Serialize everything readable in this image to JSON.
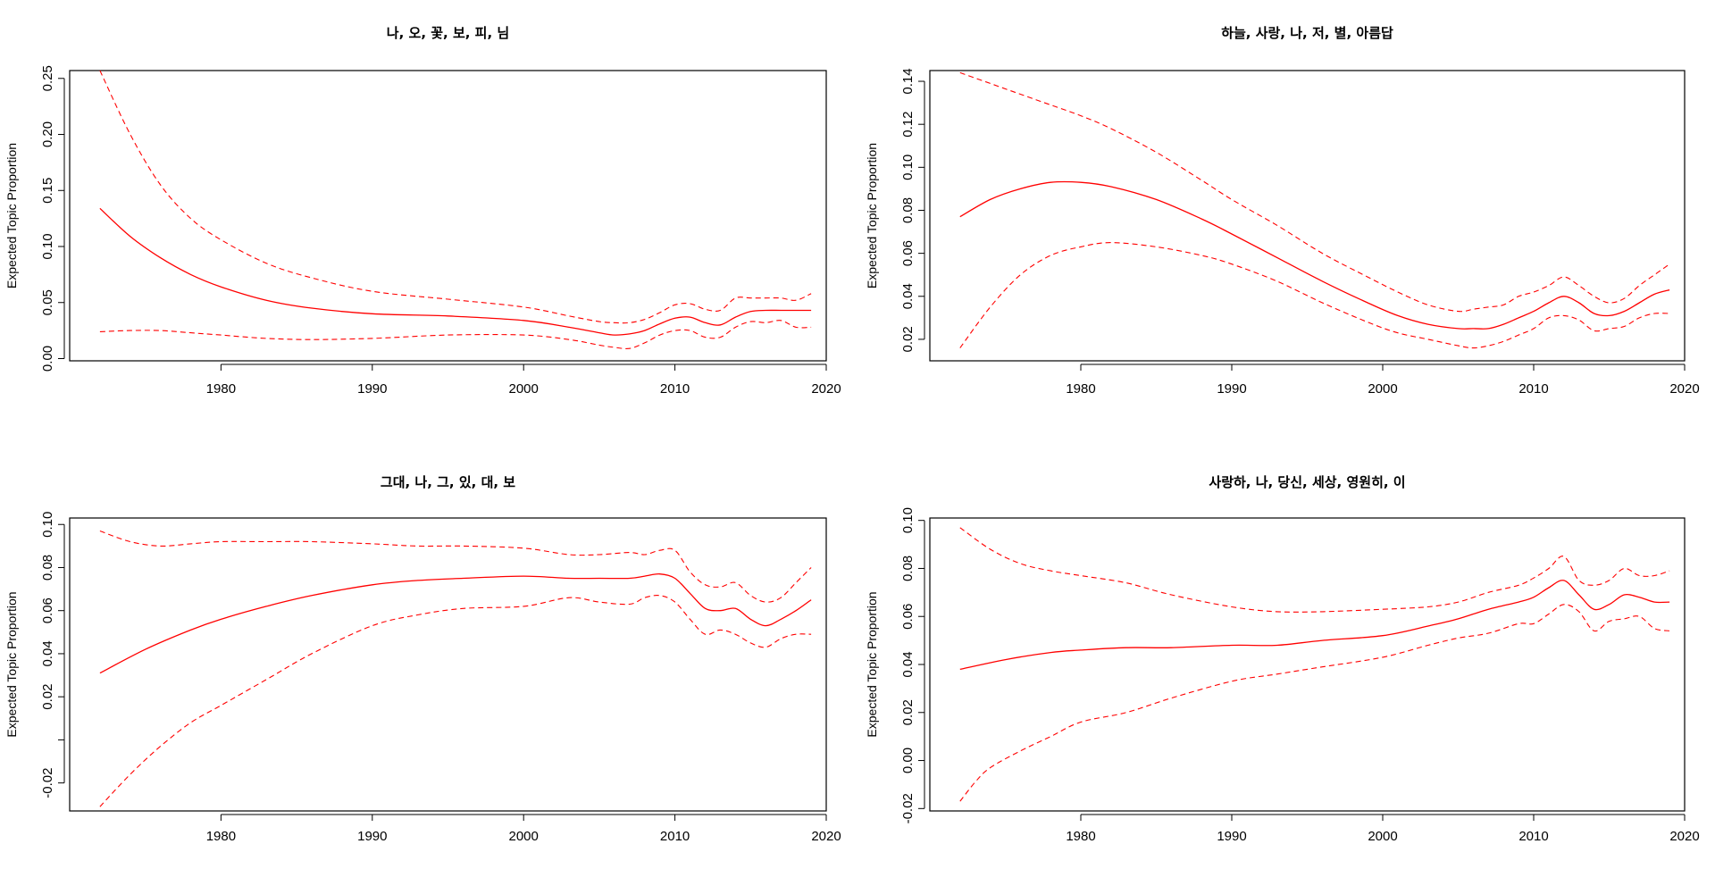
{
  "colors": {
    "series": "#ff0000",
    "axis": "#000000",
    "background": "#ffffff"
  },
  "chart_data": [
    {
      "type": "line",
      "title": "나, 오, 꽃, 보, 피, 님",
      "xlabel": "",
      "ylabel": "Expected Topic Proportion",
      "xlim": [
        1970,
        2020
      ],
      "ylim": [
        -0.002,
        0.257
      ],
      "xticks": [
        1980,
        1990,
        2000,
        2010,
        2020
      ],
      "yticks": [
        0.0,
        0.05,
        0.1,
        0.15,
        0.2,
        0.25
      ],
      "ytick_labels": [
        "0.00",
        "0.05",
        "0.10",
        "0.15",
        "0.20",
        "0.25"
      ],
      "series": [
        {
          "name": "mean",
          "style": "solid",
          "x": [
            1972,
            1974,
            1976,
            1978,
            1980,
            1983,
            1986,
            1990,
            1995,
            2000,
            2003,
            2005,
            2006,
            2007,
            2008,
            2009,
            2010,
            2011,
            2012,
            2013,
            2014,
            2015,
            2016,
            2017,
            2018,
            2019
          ],
          "y": [
            0.134,
            0.109,
            0.09,
            0.075,
            0.064,
            0.052,
            0.045,
            0.04,
            0.038,
            0.034,
            0.028,
            0.023,
            0.021,
            0.022,
            0.025,
            0.031,
            0.036,
            0.037,
            0.032,
            0.03,
            0.037,
            0.042,
            0.043,
            0.043,
            0.043,
            0.043
          ]
        },
        {
          "name": "upper 95% CI",
          "style": "dashed",
          "x": [
            1972,
            1974,
            1976,
            1978,
            1980,
            1983,
            1986,
            1990,
            1995,
            2000,
            2003,
            2005,
            2006,
            2007,
            2008,
            2009,
            2010,
            2011,
            2012,
            2013,
            2014,
            2015,
            2016,
            2017,
            2018,
            2019
          ],
          "y": [
            0.257,
            0.2,
            0.155,
            0.125,
            0.106,
            0.085,
            0.072,
            0.06,
            0.053,
            0.046,
            0.038,
            0.033,
            0.032,
            0.032,
            0.035,
            0.041,
            0.048,
            0.049,
            0.044,
            0.043,
            0.054,
            0.054,
            0.054,
            0.054,
            0.052,
            0.058
          ]
        },
        {
          "name": "lower 95% CI",
          "style": "dashed",
          "x": [
            1972,
            1974,
            1976,
            1978,
            1980,
            1983,
            1986,
            1990,
            1995,
            2000,
            2003,
            2005,
            2006,
            2007,
            2008,
            2009,
            2010,
            2011,
            2012,
            2013,
            2014,
            2015,
            2016,
            2017,
            2018,
            2019
          ],
          "y": [
            0.024,
            0.025,
            0.025,
            0.023,
            0.021,
            0.018,
            0.017,
            0.018,
            0.021,
            0.021,
            0.017,
            0.012,
            0.01,
            0.009,
            0.014,
            0.021,
            0.025,
            0.025,
            0.019,
            0.019,
            0.028,
            0.033,
            0.032,
            0.034,
            0.028,
            0.028
          ]
        }
      ]
    },
    {
      "type": "line",
      "title": "하늘, 사랑, 나, 저, 별, 아름답",
      "xlabel": "",
      "ylabel": "Expected Topic Proportion",
      "xlim": [
        1970,
        2020
      ],
      "ylim": [
        0.01,
        0.145
      ],
      "xticks": [
        1980,
        1990,
        2000,
        2010,
        2020
      ],
      "yticks": [
        0.02,
        0.04,
        0.06,
        0.08,
        0.1,
        0.12,
        0.14
      ],
      "ytick_labels": [
        "0.02",
        "0.04",
        "0.06",
        "0.08",
        "0.10",
        "0.12",
        "0.14"
      ],
      "series": [
        {
          "name": "mean",
          "style": "solid",
          "x": [
            1972,
            1974,
            1976,
            1978,
            1980,
            1982,
            1985,
            1988,
            1990,
            1993,
            1996,
            1999,
            2001,
            2003,
            2005,
            2006,
            2007,
            2008,
            2009,
            2010,
            2011,
            2012,
            2013,
            2014,
            2015,
            2016,
            2017,
            2018,
            2019
          ],
          "y": [
            0.077,
            0.085,
            0.09,
            0.093,
            0.093,
            0.091,
            0.085,
            0.076,
            0.069,
            0.058,
            0.047,
            0.037,
            0.031,
            0.027,
            0.025,
            0.025,
            0.025,
            0.027,
            0.03,
            0.033,
            0.037,
            0.04,
            0.037,
            0.032,
            0.031,
            0.033,
            0.037,
            0.041,
            0.043
          ]
        },
        {
          "name": "upper 95% CI",
          "style": "dashed",
          "x": [
            1972,
            1974,
            1976,
            1978,
            1980,
            1982,
            1985,
            1988,
            1990,
            1993,
            1996,
            1999,
            2001,
            2003,
            2005,
            2006,
            2007,
            2008,
            2009,
            2010,
            2011,
            2012,
            2013,
            2014,
            2015,
            2016,
            2017,
            2018,
            2019
          ],
          "y": [
            0.144,
            0.139,
            0.134,
            0.129,
            0.124,
            0.118,
            0.107,
            0.094,
            0.085,
            0.073,
            0.06,
            0.049,
            0.042,
            0.036,
            0.033,
            0.034,
            0.035,
            0.036,
            0.04,
            0.042,
            0.045,
            0.049,
            0.045,
            0.04,
            0.037,
            0.039,
            0.045,
            0.05,
            0.055
          ]
        },
        {
          "name": "lower 95% CI",
          "style": "dashed",
          "x": [
            1972,
            1974,
            1976,
            1978,
            1980,
            1982,
            1985,
            1988,
            1990,
            1993,
            1996,
            1999,
            2001,
            2003,
            2005,
            2006,
            2007,
            2008,
            2009,
            2010,
            2011,
            2012,
            2013,
            2014,
            2015,
            2016,
            2017,
            2018,
            2019
          ],
          "y": [
            0.016,
            0.035,
            0.05,
            0.059,
            0.063,
            0.065,
            0.063,
            0.059,
            0.055,
            0.047,
            0.037,
            0.028,
            0.023,
            0.02,
            0.017,
            0.016,
            0.017,
            0.019,
            0.022,
            0.025,
            0.03,
            0.031,
            0.029,
            0.024,
            0.025,
            0.026,
            0.03,
            0.032,
            0.032
          ]
        }
      ]
    },
    {
      "type": "line",
      "title": "그대, 나, 그, 있, 대, 보",
      "xlabel": "",
      "ylabel": "Expected Topic Proportion",
      "xlim": [
        1970,
        2020
      ],
      "ylim": [
        -0.033,
        0.103
      ],
      "xticks": [
        1980,
        1990,
        2000,
        2010,
        2020
      ],
      "yticks": [
        -0.02,
        0.0,
        0.02,
        0.04,
        0.06,
        0.08,
        0.1
      ],
      "ytick_labels": [
        "-0.02",
        "",
        "0.02",
        "0.04",
        "0.06",
        "0.08",
        "0.10"
      ],
      "series": [
        {
          "name": "mean",
          "style": "solid",
          "x": [
            1972,
            1975,
            1978,
            1980,
            1983,
            1986,
            1990,
            1993,
            1996,
            2000,
            2003,
            2005,
            2007,
            2008,
            2009,
            2010,
            2011,
            2012,
            2013,
            2014,
            2015,
            2016,
            2017,
            2018,
            2019
          ],
          "y": [
            0.031,
            0.042,
            0.051,
            0.056,
            0.062,
            0.067,
            0.072,
            0.074,
            0.075,
            0.076,
            0.075,
            0.075,
            0.075,
            0.076,
            0.077,
            0.075,
            0.068,
            0.061,
            0.06,
            0.061,
            0.056,
            0.053,
            0.056,
            0.06,
            0.065
          ]
        },
        {
          "name": "upper 95% CI",
          "style": "dashed",
          "x": [
            1972,
            1974,
            1976,
            1978,
            1980,
            1983,
            1986,
            1990,
            1993,
            1996,
            2000,
            2003,
            2005,
            2007,
            2008,
            2009,
            2010,
            2011,
            2012,
            2013,
            2014,
            2015,
            2016,
            2017,
            2018,
            2019
          ],
          "y": [
            0.097,
            0.092,
            0.09,
            0.091,
            0.092,
            0.092,
            0.092,
            0.091,
            0.09,
            0.09,
            0.089,
            0.086,
            0.086,
            0.087,
            0.086,
            0.088,
            0.088,
            0.078,
            0.072,
            0.071,
            0.073,
            0.067,
            0.064,
            0.066,
            0.073,
            0.08
          ]
        },
        {
          "name": "lower 95% CI",
          "style": "dashed",
          "x": [
            1972,
            1974,
            1976,
            1978,
            1980,
            1983,
            1986,
            1990,
            1993,
            1996,
            2000,
            2003,
            2005,
            2007,
            2008,
            2009,
            2010,
            2011,
            2012,
            2013,
            2014,
            2015,
            2016,
            2017,
            2018,
            2019
          ],
          "y": [
            -0.031,
            -0.016,
            -0.003,
            0.008,
            0.016,
            0.028,
            0.04,
            0.053,
            0.058,
            0.061,
            0.062,
            0.066,
            0.064,
            0.063,
            0.066,
            0.067,
            0.064,
            0.056,
            0.049,
            0.051,
            0.049,
            0.045,
            0.043,
            0.047,
            0.049,
            0.049
          ]
        }
      ]
    },
    {
      "type": "line",
      "title": "사랑하, 나, 당신, 세상, 영원히, 이",
      "xlabel": "",
      "ylabel": "Expected Topic Proportion",
      "xlim": [
        1970,
        2020
      ],
      "ylim": [
        -0.021,
        0.101
      ],
      "xticks": [
        1980,
        1990,
        2000,
        2010,
        2020
      ],
      "yticks": [
        -0.02,
        0.0,
        0.02,
        0.04,
        0.06,
        0.08,
        0.1
      ],
      "ytick_labels": [
        "-0.02",
        "0.00",
        "0.02",
        "0.04",
        "0.06",
        "0.08",
        "0.10"
      ],
      "series": [
        {
          "name": "mean",
          "style": "solid",
          "x": [
            1972,
            1975,
            1978,
            1980,
            1983,
            1986,
            1990,
            1993,
            1996,
            2000,
            2003,
            2005,
            2007,
            2009,
            2010,
            2011,
            2012,
            2013,
            2014,
            2015,
            2016,
            2017,
            2018,
            2019
          ],
          "y": [
            0.038,
            0.042,
            0.045,
            0.046,
            0.047,
            0.047,
            0.048,
            0.048,
            0.05,
            0.052,
            0.056,
            0.059,
            0.063,
            0.066,
            0.068,
            0.072,
            0.075,
            0.069,
            0.063,
            0.065,
            0.069,
            0.068,
            0.066,
            0.066
          ]
        },
        {
          "name": "upper 95% CI",
          "style": "dashed",
          "x": [
            1972,
            1974,
            1976,
            1978,
            1980,
            1983,
            1986,
            1990,
            1993,
            1996,
            2000,
            2003,
            2005,
            2007,
            2009,
            2010,
            2011,
            2012,
            2013,
            2014,
            2015,
            2016,
            2017,
            2018,
            2019
          ],
          "y": [
            0.097,
            0.088,
            0.082,
            0.079,
            0.077,
            0.074,
            0.069,
            0.064,
            0.062,
            0.062,
            0.063,
            0.064,
            0.066,
            0.07,
            0.073,
            0.076,
            0.08,
            0.085,
            0.075,
            0.073,
            0.075,
            0.08,
            0.077,
            0.077,
            0.079
          ]
        },
        {
          "name": "lower 95% CI",
          "style": "dashed",
          "x": [
            1972,
            1973,
            1974,
            1976,
            1978,
            1980,
            1983,
            1986,
            1990,
            1993,
            1996,
            2000,
            2003,
            2005,
            2007,
            2009,
            2010,
            2011,
            2012,
            2013,
            2014,
            2015,
            2016,
            2017,
            2018,
            2019
          ],
          "y": [
            -0.017,
            -0.009,
            -0.003,
            0.004,
            0.01,
            0.016,
            0.02,
            0.026,
            0.033,
            0.036,
            0.039,
            0.043,
            0.048,
            0.051,
            0.053,
            0.057,
            0.057,
            0.061,
            0.065,
            0.062,
            0.054,
            0.058,
            0.059,
            0.06,
            0.055,
            0.054
          ]
        }
      ]
    }
  ]
}
